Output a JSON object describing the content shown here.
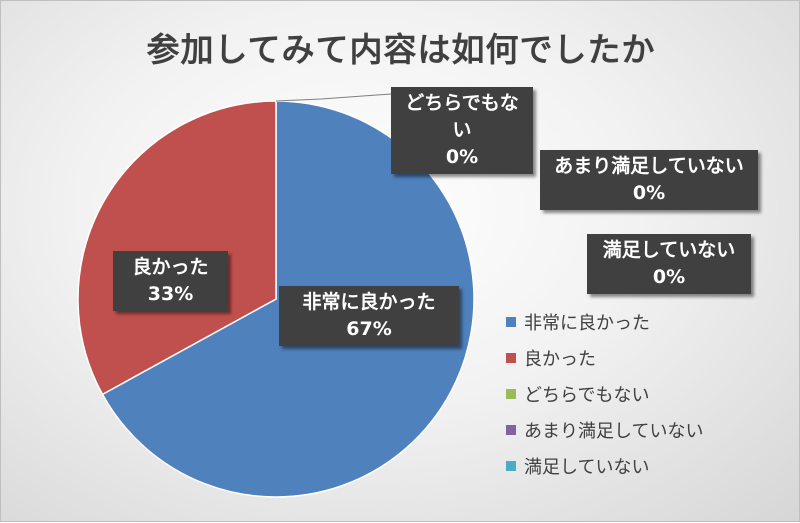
{
  "chart_data": {
    "type": "pie",
    "title": "参加してみて内容は如何でしたか",
    "categories": [
      "非常に良かった",
      "良かった",
      "どちらでもない",
      "あまり満足していない",
      "満足していない"
    ],
    "values": [
      67,
      33,
      0,
      0,
      0
    ],
    "value_labels": [
      "67%",
      "33%",
      "0%",
      "0%",
      "0%"
    ],
    "colors": [
      "#4f81bd",
      "#c0504d",
      "#9bbb59",
      "#8064a2",
      "#4bacc6"
    ],
    "legend_position": "right"
  }
}
